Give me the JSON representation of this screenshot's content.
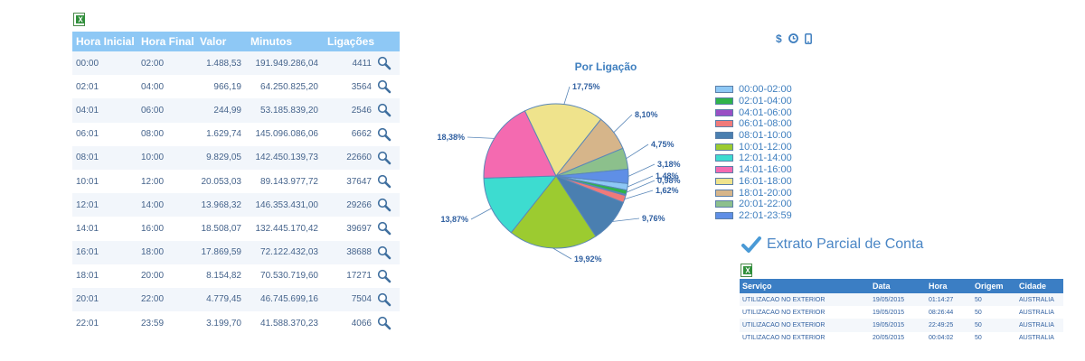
{
  "hours_table": {
    "headers": [
      "Hora Inicial",
      "Hora Final",
      "Valor",
      "Minutos",
      "Ligações"
    ],
    "rows": [
      {
        "start": "00:00",
        "end": "02:00",
        "valor": "1.488,53",
        "minutos": "191.949.286,04",
        "ligacoes": "4411"
      },
      {
        "start": "02:01",
        "end": "04:00",
        "valor": "966,19",
        "minutos": "64.250.825,20",
        "ligacoes": "3564"
      },
      {
        "start": "04:01",
        "end": "06:00",
        "valor": "244,99",
        "minutos": "53.185.839,20",
        "ligacoes": "2546"
      },
      {
        "start": "06:01",
        "end": "08:00",
        "valor": "1.629,74",
        "minutos": "145.096.086,06",
        "ligacoes": "6662"
      },
      {
        "start": "08:01",
        "end": "10:00",
        "valor": "9.829,05",
        "minutos": "142.450.139,73",
        "ligacoes": "22660"
      },
      {
        "start": "10:01",
        "end": "12:00",
        "valor": "20.053,03",
        "minutos": "89.143.977,72",
        "ligacoes": "37647"
      },
      {
        "start": "12:01",
        "end": "14:00",
        "valor": "13.968,32",
        "minutos": "146.353.431,00",
        "ligacoes": "29266"
      },
      {
        "start": "14:01",
        "end": "16:00",
        "valor": "18.508,07",
        "minutos": "132.445.170,42",
        "ligacoes": "39697"
      },
      {
        "start": "16:01",
        "end": "18:00",
        "valor": "17.869,59",
        "minutos": "72.122.432,03",
        "ligacoes": "38688"
      },
      {
        "start": "18:01",
        "end": "20:00",
        "valor": "8.154,82",
        "minutos": "70.530.719,60",
        "ligacoes": "17271"
      },
      {
        "start": "20:01",
        "end": "22:00",
        "valor": "4.779,45",
        "minutos": "46.745.699,16",
        "ligacoes": "7504"
      },
      {
        "start": "22:01",
        "end": "23:59",
        "valor": "3.199,70",
        "minutos": "41.588.370,23",
        "ligacoes": "4066"
      }
    ],
    "row_action_icon": "magnifier-icon"
  },
  "top_icons": [
    "$",
    "clock-icon",
    "phone-icon"
  ],
  "chart_data": {
    "type": "pie",
    "title": "Por Ligação",
    "slices": [
      {
        "label": "00:00-02:00",
        "value": 1.48,
        "value_label": "1,48%",
        "color": "#8ec8f5"
      },
      {
        "label": "02:01-04:00",
        "value": 0.98,
        "value_label": "0,98%",
        "color": "#2fb34a"
      },
      {
        "label": "04:01-06:00",
        "value": 0.25,
        "value_label": "",
        "color": "#9a4fc4"
      },
      {
        "label": "06:01-08:00",
        "value": 1.62,
        "value_label": "1,62%",
        "color": "#f07a7a"
      },
      {
        "label": "08:01-10:00",
        "value": 9.76,
        "value_label": "9,76%",
        "color": "#4a7fb0"
      },
      {
        "label": "10:01-12:00",
        "value": 19.92,
        "value_label": "19,92%",
        "color": "#9ccb30"
      },
      {
        "label": "12:01-14:00",
        "value": 13.87,
        "value_label": "13,87%",
        "color": "#3ddcd0"
      },
      {
        "label": "14:01-16:00",
        "value": 18.38,
        "value_label": "18,38%",
        "color": "#f46ab0"
      },
      {
        "label": "16:01-18:00",
        "value": 17.75,
        "value_label": "17,75%",
        "color": "#efe38c"
      },
      {
        "label": "18:01-20:00",
        "value": 8.1,
        "value_label": "8,10%",
        "color": "#d6b58a"
      },
      {
        "label": "20:01-22:00",
        "value": 4.75,
        "value_label": "4,75%",
        "color": "#8cc08c"
      },
      {
        "label": "22:01-23:59",
        "value": 3.18,
        "value_label": "3,18%",
        "color": "#5f8fe6"
      }
    ],
    "legend_position": "right"
  },
  "extrato": {
    "title": "Extrato Parcial de Conta",
    "headers": [
      "Serviço",
      "Data",
      "Hora",
      "Origem",
      "Cidade"
    ],
    "rows": [
      {
        "servico": "UTILIZACAO NO EXTERIOR",
        "data": "19/05/2015",
        "hora": "01:14:27",
        "origem": "50",
        "cidade": "AUSTRALIA"
      },
      {
        "servico": "UTILIZACAO NO EXTERIOR",
        "data": "19/05/2015",
        "hora": "08:26:44",
        "origem": "50",
        "cidade": "AUSTRALIA"
      },
      {
        "servico": "UTILIZACAO NO EXTERIOR",
        "data": "19/05/2015",
        "hora": "22:49:25",
        "origem": "50",
        "cidade": "AUSTRALIA"
      },
      {
        "servico": "UTILIZACAO NO EXTERIOR",
        "data": "20/05/2015",
        "hora": "00:04:02",
        "origem": "50",
        "cidade": "AUSTRALIA"
      }
    ]
  }
}
